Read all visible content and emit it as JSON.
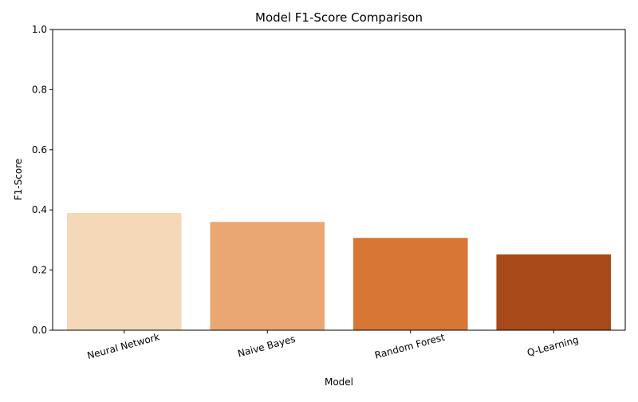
{
  "chart_data": {
    "type": "bar",
    "title": "Model F1-Score Comparison",
    "xlabel": "Model",
    "ylabel": "F1-Score",
    "categories": [
      "Neural Network",
      "Naive Bayes",
      "Random Forest",
      "Q-Learning"
    ],
    "values": [
      0.39,
      0.36,
      0.307,
      0.252
    ],
    "colors": [
      "#f4d8b8",
      "#eaa773",
      "#d87635",
      "#a84919"
    ],
    "ylim": [
      0,
      1.0
    ],
    "yticks": [
      "0.0",
      "0.2",
      "0.4",
      "0.6",
      "0.8",
      "1.0"
    ],
    "grid": false,
    "legend": "none"
  }
}
